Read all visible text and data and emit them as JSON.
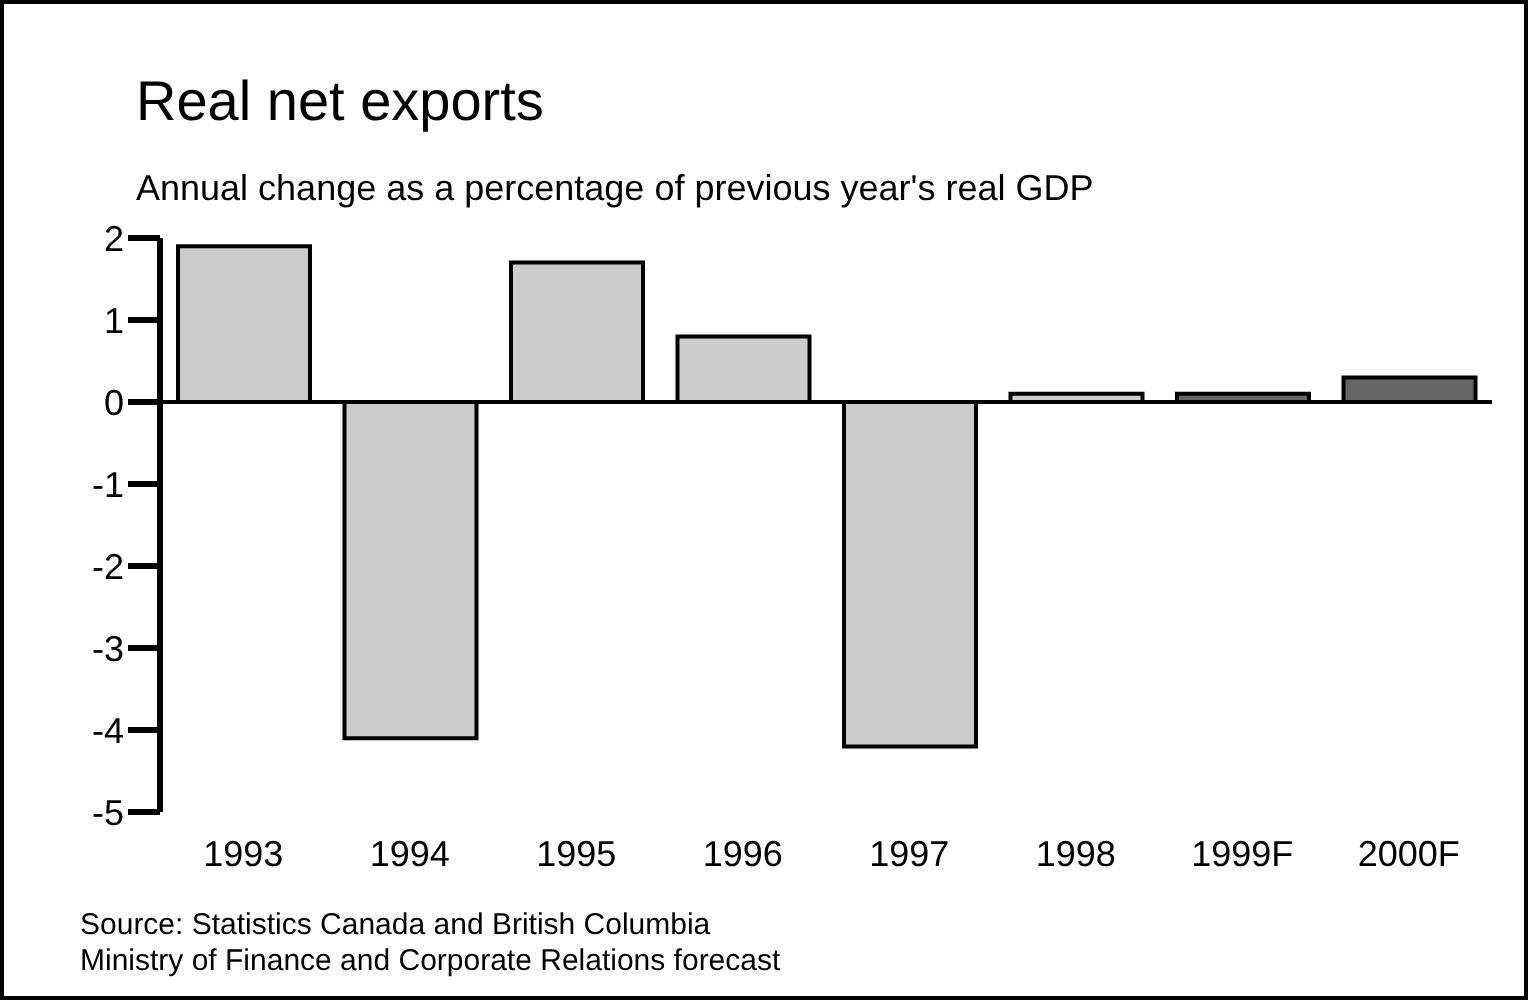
{
  "chart_data": {
    "type": "bar",
    "title": "Real net exports",
    "subtitle": "Annual change as a percentage of previous year's real GDP",
    "categories": [
      "1993",
      "1994",
      "1995",
      "1996",
      "1997",
      "1998",
      "1999F",
      "2000F"
    ],
    "values": [
      1.9,
      -4.1,
      1.7,
      0.8,
      -4.2,
      0.1,
      0.1,
      0.3
    ],
    "colors": [
      "#cccccc",
      "#cccccc",
      "#cccccc",
      "#cccccc",
      "#cccccc",
      "#cccccc",
      "#666666",
      "#666666"
    ],
    "ylim": [
      -5,
      2
    ],
    "yticks": [
      -5,
      -4,
      -3,
      -2,
      -1,
      0,
      1,
      2
    ],
    "annotations": [
      "Source: Statistics Canada and British Columbia",
      "Ministry of Finance and Corporate Relations forecast"
    ]
  }
}
